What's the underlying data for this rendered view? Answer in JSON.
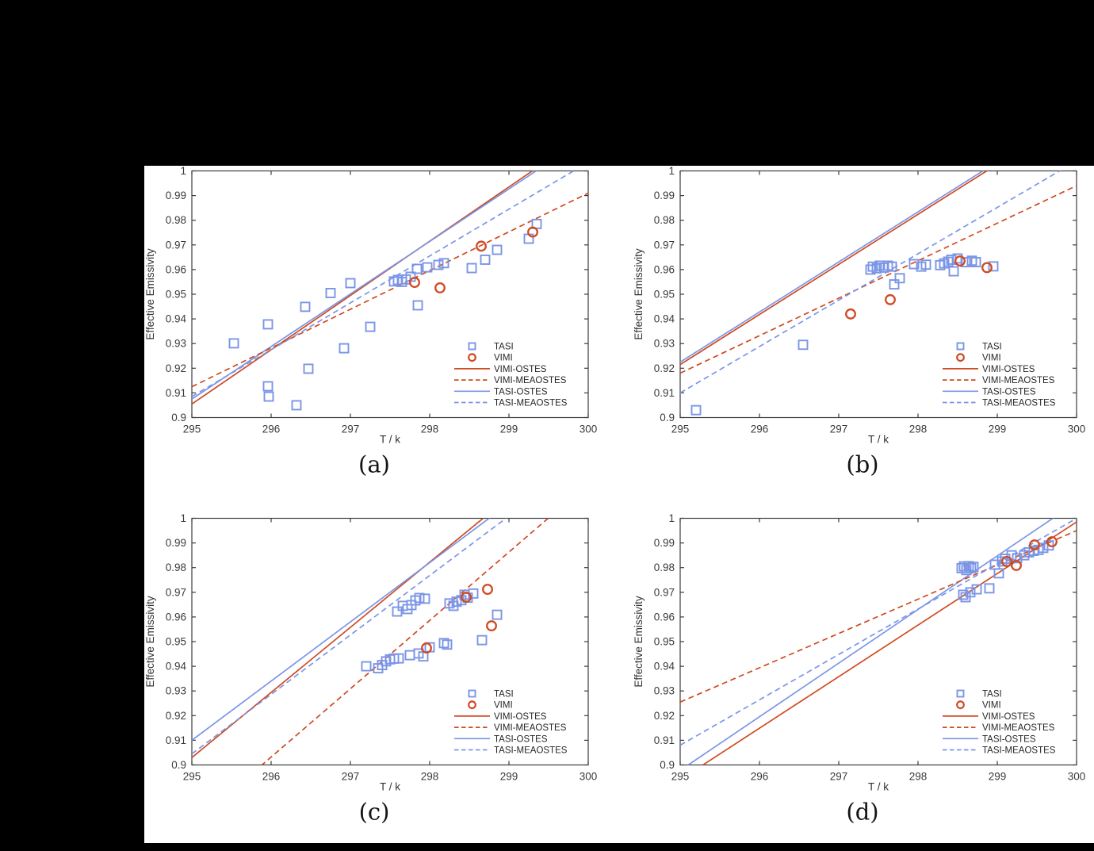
{
  "background": {
    "canvas": "#000000",
    "panel": "#ffffff"
  },
  "colors": {
    "tasi": "#7b95e6",
    "vimi": "#cf4a21",
    "axis": "#3c3c3c",
    "text": "#3a3a3a",
    "caption": "#141414"
  },
  "legend": {
    "entries": [
      {
        "label": "TASI",
        "swatch": "square",
        "color": "tasi"
      },
      {
        "label": "VIMI",
        "swatch": "circle",
        "color": "vimi"
      },
      {
        "label": "VIMI-OSTES",
        "swatch": "solid",
        "color": "vimi"
      },
      {
        "label": "VIMI-MEAOSTES",
        "swatch": "dashed",
        "color": "vimi"
      },
      {
        "label": "TASI-OSTES",
        "swatch": "solid",
        "color": "tasi"
      },
      {
        "label": "TASI-MEAOSTES",
        "swatch": "dashed",
        "color": "tasi"
      }
    ]
  },
  "chart_data": [
    {
      "id": "a",
      "type": "scatter",
      "caption": "(a)",
      "xlabel": "T / k",
      "ylabel": "Effective Emissivity",
      "xlim": [
        295,
        300
      ],
      "ylim": [
        0.9,
        1
      ],
      "xticks": [
        295,
        296,
        297,
        298,
        299,
        300
      ],
      "yticks": [
        0.9,
        0.91,
        0.92,
        0.93,
        0.94,
        0.95,
        0.96,
        0.97,
        0.98,
        0.99,
        1
      ],
      "grid": false,
      "legend_position": "lower-right",
      "lines": [
        {
          "name": "VIMI-OSTES",
          "color": "vimi",
          "style": "solid",
          "y_at_x295": 0.9055,
          "y_at_x300": 1.0155
        },
        {
          "name": "TASI-OSTES",
          "color": "tasi",
          "style": "solid",
          "y_at_x295": 0.9075,
          "y_at_x300": 1.014
        },
        {
          "name": "VIMI-MEAOSTES",
          "color": "vimi",
          "style": "dashed",
          "y_at_x295": 0.9125,
          "y_at_x300": 0.991
        },
        {
          "name": "TASI-MEAOSTES",
          "color": "tasi",
          "style": "dashed",
          "y_at_x295": 0.9085,
          "y_at_x300": 1.0035
        }
      ],
      "series": [
        {
          "name": "TASI",
          "marker": "square",
          "color": "tasi",
          "points": [
            [
              295.53,
              0.9301
            ],
            [
              295.96,
              0.9378
            ],
            [
              295.96,
              0.9127
            ],
            [
              295.97,
              0.9085
            ],
            [
              296.32,
              0.905
            ],
            [
              296.43,
              0.9449
            ],
            [
              296.47,
              0.9198
            ],
            [
              296.75,
              0.9505
            ],
            [
              296.92,
              0.9281
            ],
            [
              297.0,
              0.9545
            ],
            [
              297.25,
              0.9368
            ],
            [
              297.55,
              0.9552
            ],
            [
              297.6,
              0.9558
            ],
            [
              297.65,
              0.955
            ],
            [
              297.7,
              0.956
            ],
            [
              297.76,
              0.9571
            ],
            [
              297.84,
              0.9603
            ],
            [
              297.85,
              0.9455
            ],
            [
              297.97,
              0.9609
            ],
            [
              298.11,
              0.9619
            ],
            [
              298.18,
              0.9626
            ],
            [
              298.53,
              0.9606
            ],
            [
              298.7,
              0.964
            ],
            [
              298.85,
              0.968
            ],
            [
              299.25,
              0.9725
            ],
            [
              299.35,
              0.9785
            ]
          ]
        },
        {
          "name": "VIMI",
          "marker": "circle",
          "color": "vimi",
          "points": [
            [
              297.81,
              0.9548
            ],
            [
              298.13,
              0.9526
            ],
            [
              298.65,
              0.9695
            ],
            [
              299.3,
              0.9752
            ]
          ]
        }
      ]
    },
    {
      "id": "b",
      "type": "scatter",
      "caption": "(b)",
      "xlabel": "T / k",
      "ylabel": "Effective Emissivity",
      "xlim": [
        295,
        300
      ],
      "ylim": [
        0.9,
        1
      ],
      "xticks": [
        295,
        296,
        297,
        298,
        299,
        300
      ],
      "yticks": [
        0.9,
        0.91,
        0.92,
        0.93,
        0.94,
        0.95,
        0.96,
        0.97,
        0.98,
        0.99,
        1
      ],
      "grid": false,
      "legend_position": "lower-right",
      "lines": [
        {
          "name": "VIMI-OSTES",
          "color": "vimi",
          "style": "solid",
          "y_at_x295": 0.9215,
          "y_at_x300": 1.023
        },
        {
          "name": "TASI-OSTES",
          "color": "tasi",
          "style": "solid",
          "y_at_x295": 0.9225,
          "y_at_x300": 1.024
        },
        {
          "name": "VIMI-MEAOSTES",
          "color": "vimi",
          "style": "dashed",
          "y_at_x295": 0.918,
          "y_at_x300": 0.994
        },
        {
          "name": "TASI-MEAOSTES",
          "color": "tasi",
          "style": "dashed",
          "y_at_x295": 0.91,
          "y_at_x300": 1.004
        }
      ],
      "series": [
        {
          "name": "TASI",
          "marker": "square",
          "color": "tasi",
          "points": [
            [
              295.2,
              0.903
            ],
            [
              296.55,
              0.9295
            ],
            [
              297.4,
              0.96
            ],
            [
              297.43,
              0.9612
            ],
            [
              297.48,
              0.9605
            ],
            [
              297.52,
              0.9616
            ],
            [
              297.57,
              0.9608
            ],
            [
              297.62,
              0.9616
            ],
            [
              297.67,
              0.9612
            ],
            [
              297.7,
              0.954
            ],
            [
              297.77,
              0.9565
            ],
            [
              297.95,
              0.9622
            ],
            [
              298.04,
              0.9612
            ],
            [
              298.1,
              0.962
            ],
            [
              298.28,
              0.9618
            ],
            [
              298.33,
              0.9625
            ],
            [
              298.38,
              0.9632
            ],
            [
              298.42,
              0.964
            ],
            [
              298.45,
              0.9593
            ],
            [
              298.5,
              0.9645
            ],
            [
              298.6,
              0.963
            ],
            [
              298.68,
              0.9636
            ],
            [
              298.73,
              0.963
            ],
            [
              298.95,
              0.9613
            ]
          ]
        },
        {
          "name": "VIMI",
          "marker": "circle",
          "color": "vimi",
          "points": [
            [
              297.15,
              0.942
            ],
            [
              297.65,
              0.9478
            ],
            [
              298.53,
              0.9635
            ],
            [
              298.87,
              0.9608
            ]
          ]
        }
      ]
    },
    {
      "id": "c",
      "type": "scatter",
      "caption": "(c)",
      "xlabel": "T / k",
      "ylabel": "Effective Emissivity",
      "xlim": [
        295,
        300
      ],
      "ylim": [
        0.9,
        1
      ],
      "xticks": [
        295,
        296,
        297,
        298,
        299,
        300
      ],
      "yticks": [
        0.9,
        0.91,
        0.92,
        0.93,
        0.94,
        0.95,
        0.96,
        0.97,
        0.98,
        0.99,
        1
      ],
      "grid": false,
      "legend_position": "lower-right",
      "lines": [
        {
          "name": "VIMI-OSTES",
          "color": "vimi",
          "style": "solid",
          "y_at_x295": 0.903,
          "y_at_x300": 1.035
        },
        {
          "name": "TASI-OSTES",
          "color": "tasi",
          "style": "solid",
          "y_at_x295": 0.91,
          "y_at_x300": 1.03
        },
        {
          "name": "VIMI-MEAOSTES",
          "color": "vimi",
          "style": "dashed",
          "y_at_x295": 0.8755,
          "y_at_x300": 1.014
        },
        {
          "name": "TASI-MEAOSTES",
          "color": "tasi",
          "style": "dashed",
          "y_at_x295": 0.9045,
          "y_at_x300": 1.025
        }
      ],
      "series": [
        {
          "name": "TASI",
          "marker": "square",
          "color": "tasi",
          "points": [
            [
              297.2,
              0.94
            ],
            [
              297.35,
              0.9392
            ],
            [
              297.4,
              0.9405
            ],
            [
              297.45,
              0.942
            ],
            [
              297.5,
              0.9428
            ],
            [
              297.55,
              0.9431
            ],
            [
              297.61,
              0.9432
            ],
            [
              297.75,
              0.9445
            ],
            [
              297.86,
              0.9452
            ],
            [
              297.92,
              0.944
            ],
            [
              298.0,
              0.9477
            ],
            [
              298.18,
              0.9494
            ],
            [
              298.22,
              0.9488
            ],
            [
              298.66,
              0.9506
            ],
            [
              298.85,
              0.9609
            ],
            [
              297.59,
              0.9622
            ],
            [
              297.66,
              0.9645
            ],
            [
              297.72,
              0.9632
            ],
            [
              297.77,
              0.9648
            ],
            [
              297.82,
              0.9667
            ],
            [
              297.87,
              0.9677
            ],
            [
              297.94,
              0.9674
            ],
            [
              298.25,
              0.9655
            ],
            [
              298.3,
              0.9645
            ],
            [
              298.34,
              0.9662
            ],
            [
              298.4,
              0.9668
            ],
            [
              298.44,
              0.969
            ],
            [
              298.48,
              0.9678
            ],
            [
              298.55,
              0.9695
            ]
          ]
        },
        {
          "name": "VIMI",
          "marker": "circle",
          "color": "vimi",
          "points": [
            [
              297.96,
              0.9474
            ],
            [
              298.46,
              0.968
            ],
            [
              298.73,
              0.9712
            ],
            [
              298.78,
              0.9564
            ]
          ]
        }
      ]
    },
    {
      "id": "d",
      "type": "scatter",
      "caption": "(d)",
      "xlabel": "T / k",
      "ylabel": "Effective Emissivity",
      "xlim": [
        295,
        300
      ],
      "ylim": [
        0.9,
        1
      ],
      "xticks": [
        295,
        296,
        297,
        298,
        299,
        300
      ],
      "yticks": [
        0.9,
        0.91,
        0.92,
        0.93,
        0.94,
        0.95,
        0.96,
        0.97,
        0.98,
        0.99,
        1
      ],
      "grid": false,
      "legend_position": "lower-right",
      "lines": [
        {
          "name": "VIMI-OSTES",
          "color": "vimi",
          "style": "solid",
          "y_at_x295": 0.894,
          "y_at_x300": 0.9985
        },
        {
          "name": "TASI-OSTES",
          "color": "tasi",
          "style": "solid",
          "y_at_x295": 0.8978,
          "y_at_x300": 1.0065
        },
        {
          "name": "VIMI-MEAOSTES",
          "color": "vimi",
          "style": "dashed",
          "y_at_x295": 0.9255,
          "y_at_x300": 0.995
        },
        {
          "name": "TASI-MEAOSTES",
          "color": "tasi",
          "style": "dashed",
          "y_at_x295": 0.908,
          "y_at_x300": 1.0
        }
      ],
      "series": [
        {
          "name": "TASI",
          "marker": "square",
          "color": "tasi",
          "points": [
            [
              298.55,
              0.9798
            ],
            [
              298.58,
              0.9805
            ],
            [
              298.61,
              0.979
            ],
            [
              298.64,
              0.9806
            ],
            [
              298.67,
              0.9798
            ],
            [
              298.7,
              0.9803
            ],
            [
              298.57,
              0.969
            ],
            [
              298.6,
              0.968
            ],
            [
              298.66,
              0.97
            ],
            [
              298.74,
              0.9712
            ],
            [
              298.9,
              0.9716
            ],
            [
              298.97,
              0.9812
            ],
            [
              299.02,
              0.9777
            ],
            [
              299.06,
              0.9825
            ],
            [
              299.1,
              0.9836
            ],
            [
              299.18,
              0.985
            ],
            [
              299.25,
              0.9838
            ],
            [
              299.34,
              0.985
            ],
            [
              299.4,
              0.9862
            ],
            [
              299.46,
              0.9868
            ],
            [
              299.52,
              0.9872
            ],
            [
              299.58,
              0.988
            ],
            [
              299.65,
              0.989
            ]
          ]
        },
        {
          "name": "VIMI",
          "marker": "circle",
          "color": "vimi",
          "points": [
            [
              299.12,
              0.9825
            ],
            [
              299.24,
              0.9809
            ],
            [
              299.47,
              0.9892
            ],
            [
              299.69,
              0.9905
            ]
          ]
        }
      ]
    }
  ]
}
